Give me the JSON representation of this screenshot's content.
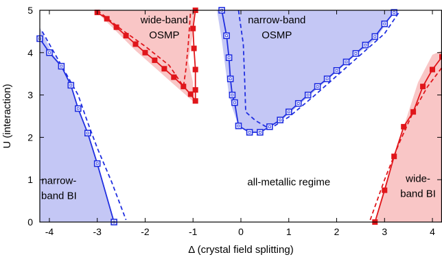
{
  "chart_data": {
    "type": "line",
    "xlabel": "Δ (crystal field splitting)",
    "ylabel": "U (interaction)",
    "xlim": [
      -4.2,
      4.2
    ],
    "ylim": [
      0,
      5
    ],
    "xticks": [
      "-4",
      "-3",
      "-2",
      "-1",
      "0",
      "1",
      "2",
      "3",
      "4"
    ],
    "yticks": [
      "0",
      "1",
      "2",
      "3",
      "4",
      "5"
    ],
    "colors": {
      "blue": "#1f2ee0",
      "red": "#e0161b",
      "blue_fill": "#c4c7f5",
      "red_fill": "#f9c6c6"
    },
    "regions": [
      {
        "id": "narrow-band-bi",
        "label_lines": [
          "narrow-",
          "band BI"
        ],
        "label_pos": [
          -3.8,
          0.75
        ],
        "fill": "blue",
        "polygon": [
          [
            -4.2,
            0
          ],
          [
            -2.65,
            0
          ],
          [
            -2.8,
            0.6
          ],
          [
            -3.0,
            1.4
          ],
          [
            -3.2,
            2.1
          ],
          [
            -3.4,
            2.7
          ],
          [
            -3.55,
            3.25
          ],
          [
            -3.75,
            3.7
          ],
          [
            -3.95,
            4.0
          ],
          [
            -4.2,
            4.6
          ]
        ]
      },
      {
        "id": "narrow-band-osmp",
        "label_lines": [
          "narrow-band",
          "OSMP"
        ],
        "label_pos": [
          0.75,
          4.55
        ],
        "fill": "blue",
        "polygon": [
          [
            -0.5,
            5
          ],
          [
            -0.4,
            4.3
          ],
          [
            -0.25,
            3.0
          ],
          [
            -0.18,
            2.7
          ],
          [
            -0.05,
            2.27
          ],
          [
            0.18,
            2.12
          ],
          [
            0.4,
            2.12
          ],
          [
            0.6,
            2.25
          ],
          [
            0.9,
            2.45
          ],
          [
            1.3,
            2.85
          ],
          [
            1.8,
            3.35
          ],
          [
            2.3,
            3.85
          ],
          [
            2.8,
            4.3
          ],
          [
            3.2,
            4.95
          ],
          [
            3.25,
            5
          ]
        ]
      },
      {
        "id": "wide-band-osmp",
        "label_lines": [
          "wide-band",
          "OSMP"
        ],
        "label_pos": [
          -1.6,
          4.55
        ],
        "fill": "red",
        "polygon": [
          [
            -3.05,
            5
          ],
          [
            -2.6,
            4.5
          ],
          [
            -2.2,
            4.05
          ],
          [
            -1.8,
            3.65
          ],
          [
            -1.4,
            3.25
          ],
          [
            -1.1,
            2.95
          ],
          [
            -1.0,
            2.85
          ],
          [
            -1.0,
            3.3
          ],
          [
            -1.1,
            3.8
          ],
          [
            -1.0,
            4.45
          ],
          [
            -0.95,
            5
          ]
        ]
      },
      {
        "id": "wide-band-bi",
        "label_lines": [
          "wide-",
          "band BI"
        ],
        "label_pos": [
          3.7,
          0.8
        ],
        "fill": "red",
        "polygon": [
          [
            2.8,
            0
          ],
          [
            4.2,
            0
          ],
          [
            4.2,
            4.05
          ],
          [
            4.0,
            3.95
          ],
          [
            3.7,
            3.3
          ],
          [
            3.5,
            2.6
          ],
          [
            3.3,
            1.9
          ],
          [
            3.1,
            1.2
          ],
          [
            2.9,
            0.45
          ]
        ]
      }
    ],
    "series": [
      {
        "id": "blue-left-solid",
        "color": "blue",
        "style": "solid",
        "marker": "open-square",
        "points": [
          [
            -4.2,
            4.33
          ],
          [
            -4.0,
            4.0
          ],
          [
            -3.75,
            3.68
          ],
          [
            -3.55,
            3.23
          ],
          [
            -3.4,
            2.68
          ],
          [
            -3.2,
            2.1
          ],
          [
            -3.0,
            1.38
          ],
          [
            -2.65,
            0.0
          ]
        ]
      },
      {
        "id": "blue-left-dashed",
        "color": "blue",
        "style": "dashed",
        "marker": "none",
        "points": [
          [
            -4.15,
            4.5
          ],
          [
            -3.8,
            3.8
          ],
          [
            -3.6,
            3.4
          ],
          [
            -3.4,
            3.0
          ],
          [
            -3.2,
            2.35
          ],
          [
            -3.0,
            1.75
          ],
          [
            -2.7,
            0.95
          ],
          [
            -2.4,
            0.05
          ]
        ]
      },
      {
        "id": "blue-center-solid",
        "color": "blue",
        "style": "solid",
        "marker": "open-square",
        "points": [
          [
            -0.4,
            5.0
          ],
          [
            -0.3,
            4.4
          ],
          [
            -0.25,
            3.88
          ],
          [
            -0.22,
            3.38
          ],
          [
            -0.18,
            3.0
          ],
          [
            -0.13,
            2.82
          ],
          [
            -0.05,
            2.27
          ],
          [
            0.18,
            2.12
          ],
          [
            0.4,
            2.12
          ],
          [
            0.6,
            2.25
          ],
          [
            0.82,
            2.41
          ],
          [
            1.0,
            2.6
          ],
          [
            1.2,
            2.8
          ],
          [
            1.4,
            3.0
          ],
          [
            1.6,
            3.2
          ],
          [
            1.8,
            3.38
          ],
          [
            2.0,
            3.58
          ],
          [
            2.2,
            3.78
          ],
          [
            2.4,
            3.98
          ],
          [
            2.6,
            4.18
          ],
          [
            2.8,
            4.38
          ],
          [
            3.0,
            4.68
          ],
          [
            3.2,
            4.95
          ]
        ]
      },
      {
        "id": "blue-center-dashed",
        "color": "blue",
        "style": "dashed",
        "marker": "none",
        "points": [
          [
            -0.05,
            5.0
          ],
          [
            0.05,
            4.2
          ],
          [
            0.08,
            3.3
          ],
          [
            0.1,
            2.6
          ],
          [
            0.3,
            2.4
          ],
          [
            0.6,
            2.2
          ],
          [
            1.0,
            2.48
          ],
          [
            1.5,
            2.95
          ],
          [
            2.0,
            3.45
          ],
          [
            2.5,
            3.95
          ],
          [
            3.0,
            4.45
          ],
          [
            3.3,
            4.95
          ]
        ]
      },
      {
        "id": "red-osmp-solid",
        "color": "red",
        "style": "solid",
        "marker": "filled-square",
        "points": [
          [
            -3.0,
            4.95
          ],
          [
            -2.8,
            4.8
          ],
          [
            -2.6,
            4.6
          ],
          [
            -2.4,
            4.4
          ],
          [
            -2.2,
            4.2
          ],
          [
            -2.0,
            4.0
          ],
          [
            -1.8,
            3.82
          ],
          [
            -1.6,
            3.62
          ],
          [
            -1.4,
            3.42
          ],
          [
            -1.2,
            3.2
          ],
          [
            -1.05,
            3.02
          ],
          [
            -0.95,
            2.86
          ],
          [
            -0.95,
            3.12
          ],
          [
            -0.95,
            3.6
          ],
          [
            -0.98,
            4.1
          ],
          [
            -1.0,
            4.57
          ],
          [
            -0.95,
            5.0
          ]
        ]
      },
      {
        "id": "red-osmp-dashed",
        "color": "red",
        "style": "dashed",
        "marker": "none",
        "points": [
          [
            -3.0,
            5.0
          ],
          [
            -2.5,
            4.55
          ],
          [
            -2.0,
            4.15
          ],
          [
            -1.5,
            3.7
          ],
          [
            -1.2,
            3.2
          ],
          [
            -1.15,
            3.6
          ],
          [
            -1.1,
            4.2
          ],
          [
            -1.05,
            5.0
          ]
        ]
      },
      {
        "id": "red-right-solid",
        "color": "red",
        "style": "solid",
        "marker": "filled-square",
        "points": [
          [
            2.8,
            0.0
          ],
          [
            3.0,
            0.75
          ],
          [
            3.2,
            1.55
          ],
          [
            3.4,
            2.25
          ],
          [
            3.6,
            2.6
          ],
          [
            3.8,
            3.2
          ],
          [
            4.0,
            3.6
          ],
          [
            4.2,
            3.9
          ]
        ]
      },
      {
        "id": "red-right-dashed",
        "color": "red",
        "style": "dashed",
        "marker": "none",
        "points": [
          [
            2.7,
            0.05
          ],
          [
            3.0,
            1.0
          ],
          [
            3.3,
            1.85
          ],
          [
            3.6,
            2.6
          ],
          [
            3.9,
            3.2
          ],
          [
            4.2,
            3.65
          ]
        ]
      }
    ],
    "annotations": [
      {
        "id": "all-metallic-regime",
        "text": "all-metallic regime",
        "pos": [
          1.0,
          0.95
        ]
      }
    ],
    "grid": false,
    "legend": "none"
  }
}
